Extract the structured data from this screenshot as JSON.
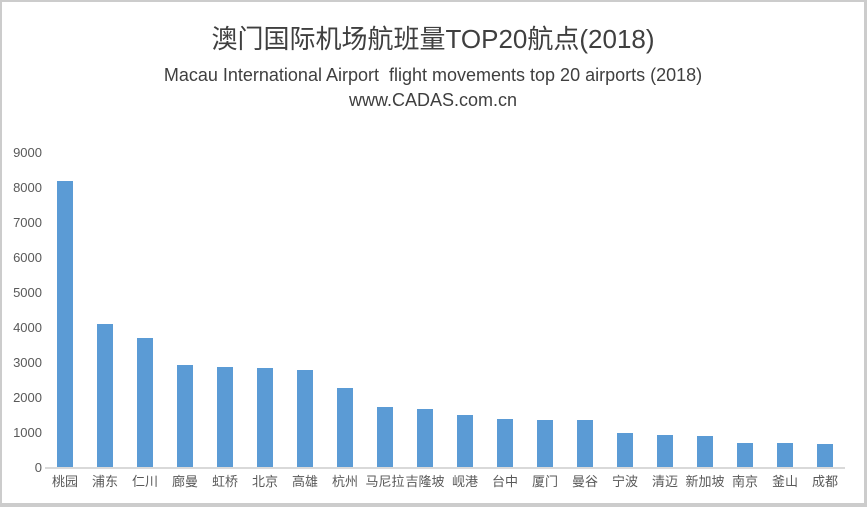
{
  "chart_data": {
    "type": "bar",
    "title": "澳门国际机场航班量TOP20航点(2018)",
    "subtitle": "Macau International Airport  flight movements top 20 airports (2018)",
    "source": "www.CADAS.com.cn",
    "categories": [
      "桃园",
      "浦东",
      "仁川",
      "廊曼",
      "虹桥",
      "北京",
      "高雄",
      "杭州",
      "马尼拉",
      "吉隆坡",
      "岘港",
      "台中",
      "厦门",
      "曼谷",
      "宁波",
      "清迈",
      "新加坡",
      "南京",
      "釜山",
      "成都"
    ],
    "values": [
      8200,
      4120,
      3720,
      2950,
      2890,
      2850,
      2800,
      2290,
      1750,
      1680,
      1520,
      1390,
      1365,
      1360,
      1000,
      955,
      915,
      720,
      700,
      685
    ],
    "xlabel": "",
    "ylabel": "",
    "ylim": [
      0,
      9000
    ],
    "ytick_step": 1000,
    "yticks": [
      "0",
      "1000",
      "2000",
      "3000",
      "4000",
      "5000",
      "6000",
      "7000",
      "8000",
      "9000"
    ],
    "grid": false,
    "legend": "none",
    "bar_color": "#5B9BD5",
    "axis_line_color": "#D9D9D9",
    "tick_label_color": "#595959",
    "title_color": "#3f3f3f"
  }
}
